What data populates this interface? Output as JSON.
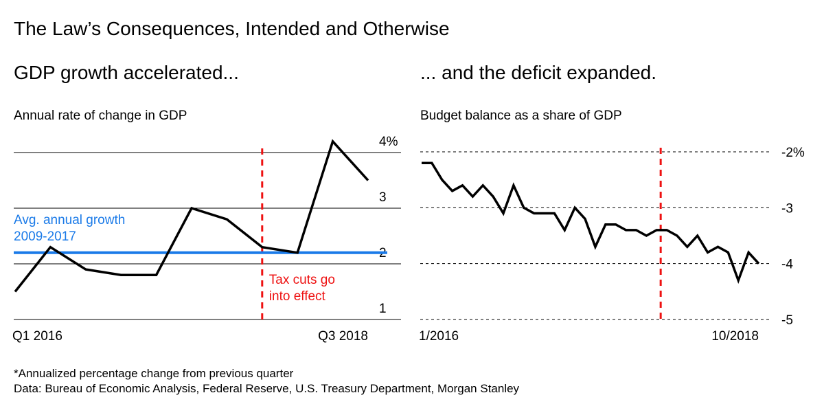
{
  "title": "The Law’s Consequences, Intended and Otherwise",
  "footnote": "*Annualized percentage change from previous quarter",
  "source": "Data: Bureau of Economic Analysis, Federal Reserve, U.S. Treasury Department, Morgan Stanley",
  "colors": {
    "line": "#000000",
    "average": "#1a7ae8",
    "event": "#ee1111",
    "grid": "#000000"
  },
  "chart_data": [
    {
      "type": "line",
      "subtitle": "GDP growth accelerated...",
      "ylabel": "Annual rate of change in GDP",
      "x": [
        "Q1 2016",
        "Q2 2016",
        "Q3 2016",
        "Q4 2016",
        "Q1 2017",
        "Q2 2017",
        "Q3 2017",
        "Q4 2017",
        "Q1 2018",
        "Q2 2018",
        "Q3 2018"
      ],
      "values": [
        1.5,
        2.3,
        1.9,
        1.8,
        1.8,
        3.0,
        2.8,
        2.3,
        2.2,
        4.2,
        3.5
      ],
      "x_tick_labels": [
        "Q1 2016",
        "Q3 2018"
      ],
      "y_ticks": [
        {
          "v": 4,
          "label": "4%"
        },
        {
          "v": 3,
          "label": "3"
        },
        {
          "v": 2,
          "label": "2"
        },
        {
          "v": 1,
          "label": "1"
        }
      ],
      "ylim": [
        1,
        4
      ],
      "grid": "solid",
      "average": {
        "value": 2.2,
        "label_line1": "Avg. annual growth",
        "label_line2": "2009-2017"
      },
      "event": {
        "at": 7,
        "label_line1": "Tax cuts go",
        "label_line2": "into effect"
      }
    },
    {
      "type": "line",
      "subtitle": "... and the deficit expanded.",
      "ylabel": "Budget balance as a share of GDP",
      "x_range": [
        "1/2016",
        "10/2018"
      ],
      "values": [
        -2.2,
        -2.2,
        -2.5,
        -2.7,
        -2.6,
        -2.8,
        -2.6,
        -2.8,
        -3.1,
        -2.6,
        -3.0,
        -3.1,
        -3.1,
        -3.1,
        -3.4,
        -3.0,
        -3.2,
        -3.7,
        -3.3,
        -3.3,
        -3.4,
        -3.4,
        -3.5,
        -3.4,
        -3.4,
        -3.5,
        -3.7,
        -3.5,
        -3.8,
        -3.7,
        -3.8,
        -4.3,
        -3.8,
        -4.0
      ],
      "x_tick_labels": [
        "1/2016",
        "10/2018"
      ],
      "y_ticks": [
        {
          "v": -2,
          "label": "-2%"
        },
        {
          "v": -3,
          "label": "-3"
        },
        {
          "v": -4,
          "label": "-4"
        },
        {
          "v": -5,
          "label": "-5"
        }
      ],
      "ylim": [
        -5,
        -2
      ],
      "grid": "dashed",
      "event": {
        "at": 23.4
      }
    }
  ]
}
